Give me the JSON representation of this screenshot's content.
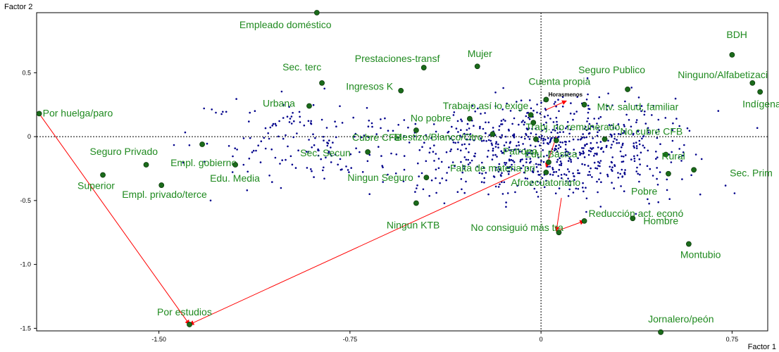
{
  "chart_data": {
    "type": "scatter",
    "title": "",
    "xlabel": "Factor 1",
    "ylabel": "Factor 2",
    "xlim": [
      -1.98,
      0.89
    ],
    "ylim": [
      -1.52,
      0.97
    ],
    "xticks": [
      -1.5,
      -0.75,
      0,
      0.75
    ],
    "xtick_labels": [
      "-1.50",
      "-0.75",
      "0",
      "0.75"
    ],
    "yticks": [
      0.5,
      0,
      -0.5,
      -1.0,
      -1.5
    ],
    "ytick_labels": [
      "0.5",
      "0",
      "-0.5",
      "-1.0",
      "-1.5"
    ],
    "reference_lines": {
      "x": 0,
      "y": 0,
      "style": "dashed"
    },
    "colors": {
      "categories": "#1f8a1f",
      "markers": "#1a6b1a",
      "individuals": "#00008b",
      "arrows": "#ff0000"
    },
    "categories": [
      {
        "label": "Empleado doméstico",
        "x": -0.88,
        "y": 0.97
      },
      {
        "label": "BDH",
        "x": 0.75,
        "y": 0.64
      },
      {
        "label": "Sec. terc",
        "x": -0.86,
        "y": 0.42
      },
      {
        "label": "Prestaciones-transf",
        "x": -0.46,
        "y": 0.54
      },
      {
        "label": "Mujer",
        "x": -0.25,
        "y": 0.55
      },
      {
        "label": "Ingresos K",
        "x": -0.55,
        "y": 0.36
      },
      {
        "label": "Cuenta propia",
        "x": 0.02,
        "y": 0.29
      },
      {
        "label": "Seguro Publico",
        "x": 0.34,
        "y": 0.37
      },
      {
        "label": "Ninguno/Alfabetizaci",
        "x": 0.83,
        "y": 0.42
      },
      {
        "label": "Por huelga/paro",
        "x": -1.97,
        "y": 0.18
      },
      {
        "label": "Urbana",
        "x": -0.91,
        "y": 0.24
      },
      {
        "label": "Trabajo así lo exige",
        "x": -0.04,
        "y": 0.17
      },
      {
        "label": "Mtv. salud, familiar",
        "x": 0.17,
        "y": 0.25
      },
      {
        "label": "Indígena",
        "x": 0.86,
        "y": 0.35
      },
      {
        "label": "Cubre CFB",
        "x": -0.49,
        "y": 0.05
      },
      {
        "label": "No pobre",
        "x": -0.28,
        "y": 0.14
      },
      {
        "label": "Trabj. no remunerado",
        "x": -0.03,
        "y": 0.11
      },
      {
        "label": "No cubre CFB",
        "x": 0.25,
        "y": -0.02
      },
      {
        "label": "Mestizo/Blanco/Otro",
        "x": -0.19,
        "y": 0.02
      },
      {
        "label": "Seguro Privado",
        "x": -1.55,
        "y": -0.22
      },
      {
        "label": "Empl. gobierno",
        "x": -1.33,
        "y": -0.06
      },
      {
        "label": "Sec. Secun",
        "x": -0.68,
        "y": -0.12
      },
      {
        "label": "Patrono",
        "x": -0.02,
        "y": -0.02
      },
      {
        "label": "Edu. Básica",
        "x": 0.06,
        "y": -0.03
      },
      {
        "label": "Rural",
        "x": 0.49,
        "y": -0.14
      },
      {
        "label": "Falta de materia pri",
        "x": 0.03,
        "y": -0.2
      },
      {
        "label": "Edu. Media",
        "x": -1.2,
        "y": -0.22
      },
      {
        "label": "Ningun Seguro",
        "x": -0.45,
        "y": -0.32
      },
      {
        "label": "Afroecuatoriano",
        "x": 0.02,
        "y": -0.28
      },
      {
        "label": "Pobre",
        "x": 0.5,
        "y": -0.29
      },
      {
        "label": "Sec. Prim",
        "x": 0.6,
        "y": -0.26
      },
      {
        "label": "Superior",
        "x": -1.72,
        "y": -0.3
      },
      {
        "label": "Empl. privado/terce",
        "x": -1.49,
        "y": -0.38
      },
      {
        "label": "Ningun KTB",
        "x": -0.49,
        "y": -0.52
      },
      {
        "label": "Reducción act. económ",
        "x": 0.17,
        "y": -0.66
      },
      {
        "label": "Hombre",
        "x": 0.36,
        "y": -0.64
      },
      {
        "label": "No consiguió más tra",
        "x": 0.07,
        "y": -0.75
      },
      {
        "label": "Montubio",
        "x": 0.58,
        "y": -0.84
      },
      {
        "label": "Por estudios",
        "x": -1.38,
        "y": -1.47
      },
      {
        "label": "Jornalero/peón",
        "x": 0.47,
        "y": -1.53
      }
    ],
    "category_text": [
      "Empleado doméstico",
      "BDH",
      "Sec. terc",
      "Prestaciones-transf",
      "Mujer",
      "Ingresos K",
      "Cuenta propia",
      "Seguro Publico",
      "Ninguno/Alfabetizaci",
      "Por huelga/paro",
      "Urbana",
      "Trabajo así lo exige",
      "Mtv. salud, familiar",
      "Indígena",
      "Cubre CFB",
      "No pobre",
      "Trabj. no remunerado",
      "No cubre CFB",
      "Mestizo/Blanco/Otro",
      "Seguro Privado",
      "Empl. gobierno",
      "Sec. Secun",
      "Patrono",
      "Edu. Básica",
      "Rural",
      "Falta de materia pri",
      "Edu. Media",
      "Ningun Seguro",
      "Afroecuatoriano",
      "Pobre",
      "Sec. Prim",
      "Superior",
      "Empl. privado/terce",
      "Ningun KTB",
      "Reducción act. econó",
      "Hombre",
      "No consiguió más tra",
      "Montubio",
      "Por estudios",
      "Jornalero/peón"
    ],
    "supplementary": {
      "label": "Horasmenos",
      "x": 0.09,
      "y": 0.31
    },
    "arrows": [
      {
        "from": [
          -1.97,
          0.18
        ],
        "to": [
          -1.38,
          -1.47
        ]
      },
      {
        "from": [
          -0.08,
          -0.28
        ],
        "to": [
          -1.38,
          -1.47
        ]
      },
      {
        "from": [
          0.02,
          0.21
        ],
        "to": [
          0.1,
          0.28
        ]
      },
      {
        "from": [
          0.06,
          0.0
        ],
        "to": [
          0.02,
          -0.24
        ]
      },
      {
        "from": [
          0.08,
          -0.48
        ],
        "to": [
          0.06,
          -0.74
        ]
      },
      {
        "from": [
          0.06,
          -0.74
        ],
        "to": [
          0.17,
          -0.66
        ]
      }
    ],
    "individuals": {
      "count": 900,
      "x_range": [
        -1.65,
        0.88
      ],
      "y_range": [
        -1.32,
        0.85
      ]
    }
  }
}
